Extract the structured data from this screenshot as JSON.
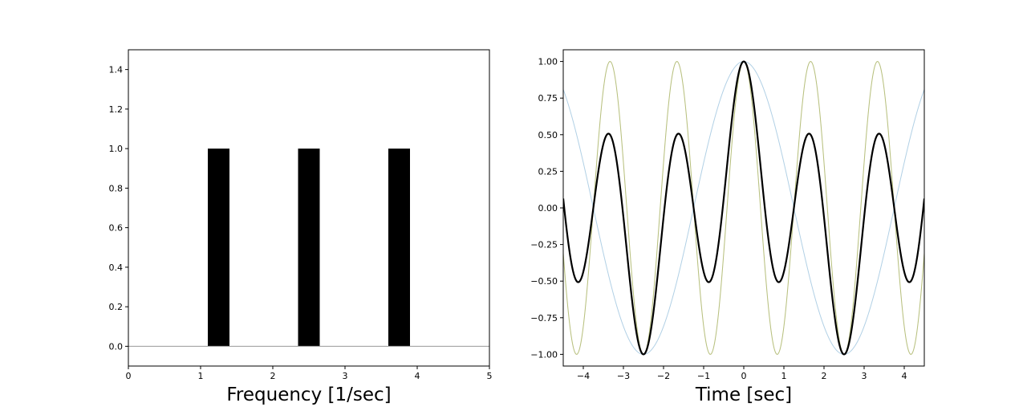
{
  "chart_data": [
    {
      "type": "bar",
      "xlabel": "Frequency [1/sec]",
      "ylabel": "",
      "xlim": [
        0,
        5
      ],
      "ylim": [
        -0.1,
        1.5
      ],
      "xticks": [
        0,
        1,
        2,
        3,
        4,
        5
      ],
      "yticks": [
        0.0,
        0.2,
        0.4,
        0.6,
        0.8,
        1.0,
        1.2,
        1.4
      ],
      "xtick_labels": [
        "0",
        "1",
        "2",
        "3",
        "4",
        "5"
      ],
      "ytick_labels": [
        "0.0",
        "0.2",
        "0.4",
        "0.6",
        "0.8",
        "1.0",
        "1.2",
        "1.4"
      ],
      "bars": [
        {
          "x": 1.25,
          "width": 0.3,
          "value": 1.0
        },
        {
          "x": 2.5,
          "width": 0.3,
          "value": 1.0
        },
        {
          "x": 3.75,
          "width": 0.3,
          "value": 1.0
        }
      ],
      "baseline": 0.0,
      "bar_color": "#000000",
      "baseline_color": "#999999",
      "grid": false
    },
    {
      "type": "line",
      "xlabel": "Time [sec]",
      "ylabel": "",
      "xlim": [
        -4.5,
        4.5
      ],
      "ylim": [
        -1.08,
        1.08
      ],
      "xticks": [
        -4,
        -3,
        -2,
        -1,
        0,
        1,
        2,
        3,
        4
      ],
      "yticks": [
        -1.0,
        -0.75,
        -0.5,
        -0.25,
        0.0,
        0.25,
        0.5,
        0.75,
        1.0
      ],
      "xtick_labels": [
        "−4",
        "−3",
        "−2",
        "−1",
        "0",
        "1",
        "2",
        "3",
        "4"
      ],
      "ytick_labels": [
        "−1.00",
        "−0.75",
        "−0.50",
        "−0.25",
        "0.00",
        "0.25",
        "0.50",
        "0.75",
        "1.00"
      ],
      "series": [
        {
          "function": "cos(2*pi*0.2*t)",
          "frequency": 0.2,
          "color": "#1f77b4",
          "opacity": 0.35
        },
        {
          "function": "cos(2*pi*0.6*t)",
          "frequency": 0.6,
          "color": "#ff7f0e",
          "opacity": 0.35
        },
        {
          "function": "cos(2*pi*0.6*t)",
          "frequency": 0.6,
          "color": "#2ca02c",
          "opacity": 0.35
        },
        {
          "function": "sum of components / 3",
          "frequencies": [
            0.2,
            0.6,
            0.6
          ],
          "color": "#000000",
          "opacity": 1.0
        }
      ],
      "grid": false
    }
  ]
}
